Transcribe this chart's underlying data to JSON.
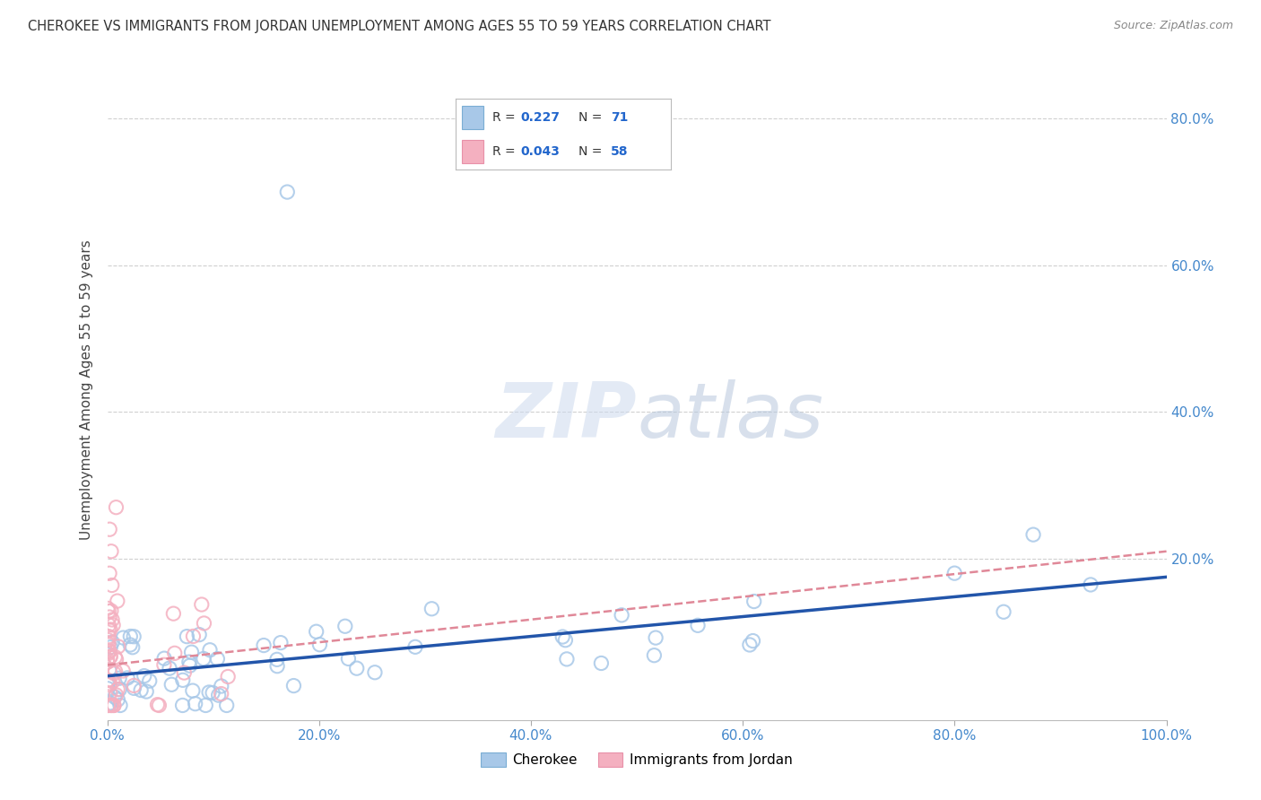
{
  "title": "CHEROKEE VS IMMIGRANTS FROM JORDAN UNEMPLOYMENT AMONG AGES 55 TO 59 YEARS CORRELATION CHART",
  "source": "Source: ZipAtlas.com",
  "ylabel": "Unemployment Among Ages 55 to 59 years",
  "xlim": [
    0.0,
    1.0
  ],
  "ylim": [
    -0.02,
    0.88
  ],
  "xticks": [
    0.0,
    0.2,
    0.4,
    0.6,
    0.8,
    1.0
  ],
  "xtick_labels": [
    "0.0%",
    "20.0%",
    "40.0%",
    "60.0%",
    "80.0%",
    "100.0%"
  ],
  "right_yticks": [
    0.0,
    0.2,
    0.4,
    0.6,
    0.8
  ],
  "right_ytick_labels": [
    "",
    "20.0%",
    "40.0%",
    "60.0%",
    "80.0%"
  ],
  "legend_r1": "R = 0.227",
  "legend_n1": "N = 71",
  "legend_r2": "R = 0.043",
  "legend_n2": "N = 58",
  "cherokee_color": "#a8c8e8",
  "jordan_color": "#f4b0c0",
  "cherokee_edge_color": "#7aadd4",
  "jordan_edge_color": "#e890a8",
  "cherokee_line_color": "#2255aa",
  "jordan_line_color": "#e08898",
  "watermark_zip": "#c8d8ee",
  "watermark_atlas": "#b8c8de",
  "background_color": "#ffffff",
  "grid_color": "#d0d0d0",
  "title_color": "#333333",
  "source_color": "#888888",
  "axis_label_color": "#444444",
  "right_tick_color": "#4488cc",
  "bottom_tick_color": "#4488cc"
}
